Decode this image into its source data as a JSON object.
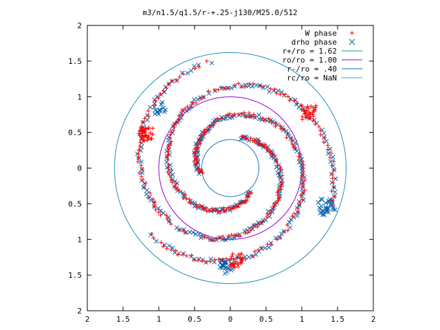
{
  "chart_data": {
    "type": "scatter",
    "title": "m3/n1.5/q1.5/r-+.25-j130/M25.0/512",
    "xlabel": "",
    "ylabel": "",
    "xlim": [
      -2,
      2
    ],
    "ylim": [
      -2,
      2
    ],
    "x_ticks": [
      -2,
      -1.5,
      -1,
      -0.5,
      0,
      0.5,
      1,
      1.5,
      2
    ],
    "y_ticks": [
      -2,
      -1.5,
      -1,
      -0.5,
      0,
      0.5,
      1,
      1.5,
      2
    ],
    "x_tick_labels": [
      "2",
      "1.5",
      "1",
      "0.5",
      "0",
      "0.5",
      "1",
      "1.5",
      "2"
    ],
    "y_tick_labels": [
      "2",
      "1.5",
      "1",
      "0.5",
      "0",
      "0.5",
      "1",
      "1.5",
      "2"
    ],
    "grid": false,
    "legend_position": "top-right",
    "legend": [
      {
        "label": "W phase",
        "marker": "plus",
        "color": "#ff0000"
      },
      {
        "label": "drho phase",
        "marker": "cross",
        "color": "#0060ad"
      },
      {
        "label": "r+/ro = 1.62",
        "marker": "line",
        "color": "#009e73"
      },
      {
        "label": "ro/ro = 1.00",
        "marker": "line",
        "color": "#9400d3"
      },
      {
        "label": "r-/ro = .40",
        "marker": "line",
        "color": "#0072b2"
      },
      {
        "label": "rc/ro = NaN",
        "marker": "line",
        "color": "#00c0c0"
      }
    ],
    "circles": [
      {
        "name": "r+/ro = 1.62",
        "r": 1.62,
        "color": "#1f90c0"
      },
      {
        "name": "ro/ro = 1.00",
        "r": 1.0,
        "color": "#9400d3"
      },
      {
        "name": "r-/ro = .40",
        "r": 0.4,
        "color": "#1f6fc0"
      }
    ],
    "series": [
      {
        "name": "W phase",
        "marker": "plus",
        "color": "#ff0000",
        "spiral_arms": [
          {
            "theta_start_deg": 100,
            "theta_end_deg": 430,
            "r_start": 1.52,
            "r_end": 0.45
          },
          {
            "theta_start_deg": 220,
            "theta_end_deg": 550,
            "r_start": 1.45,
            "r_end": 0.42
          },
          {
            "theta_start_deg": 340,
            "theta_end_deg": 670,
            "r_start": 1.5,
            "r_end": 0.44
          }
        ],
        "clusters": [
          {
            "x": -1.18,
            "y": 0.48,
            "spread": 0.1,
            "count": 40
          },
          {
            "x": 1.1,
            "y": 0.78,
            "spread": 0.1,
            "count": 30
          },
          {
            "x": 0.1,
            "y": -1.3,
            "spread": 0.1,
            "count": 25
          }
        ]
      },
      {
        "name": "drho phase",
        "marker": "cross",
        "color": "#0060ad",
        "spiral_arms": [
          {
            "theta_start_deg": 100,
            "theta_end_deg": 430,
            "r_start": 1.52,
            "r_end": 0.45
          },
          {
            "theta_start_deg": 220,
            "theta_end_deg": 550,
            "r_start": 1.45,
            "r_end": 0.42
          },
          {
            "theta_start_deg": 340,
            "theta_end_deg": 670,
            "r_start": 1.5,
            "r_end": 0.44
          }
        ],
        "clusters": [
          {
            "x": 1.35,
            "y": -0.55,
            "spread": 0.12,
            "count": 30
          },
          {
            "x": -0.05,
            "y": -1.38,
            "spread": 0.1,
            "count": 25
          },
          {
            "x": -1.0,
            "y": 0.85,
            "spread": 0.1,
            "count": 15
          }
        ]
      }
    ]
  }
}
